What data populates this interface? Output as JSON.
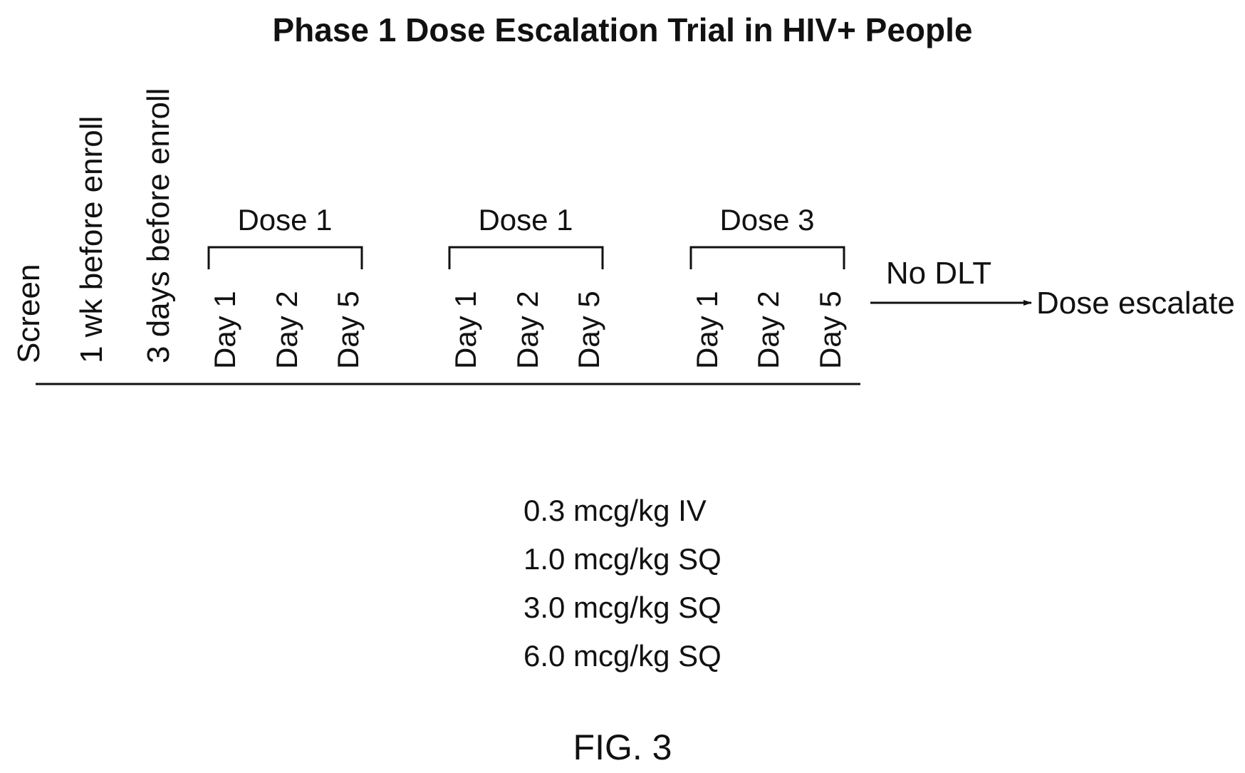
{
  "title": "Phase 1 Dose Escalation Trial in HIV+ People",
  "pre_labels": [
    "Screen",
    "1 wk before enroll",
    "3 days before enroll"
  ],
  "cycles": [
    {
      "dose_label": "Dose 1",
      "days": [
        "Day 1",
        "Day 2",
        "Day 5"
      ]
    },
    {
      "dose_label": "Dose 1",
      "days": [
        "Day 1",
        "Day 2",
        "Day 5"
      ]
    },
    {
      "dose_label": "Dose 3",
      "days": [
        "Day 1",
        "Day 2",
        "Day 5"
      ]
    }
  ],
  "arrow": {
    "condition": "No DLT",
    "result": "Dose escalate"
  },
  "dose_levels": [
    "0.3 mcg/kg IV",
    "1.0 mcg/kg SQ",
    "3.0 mcg/kg SQ",
    "6.0 mcg/kg SQ"
  ],
  "figure_label": "FIG. 3"
}
